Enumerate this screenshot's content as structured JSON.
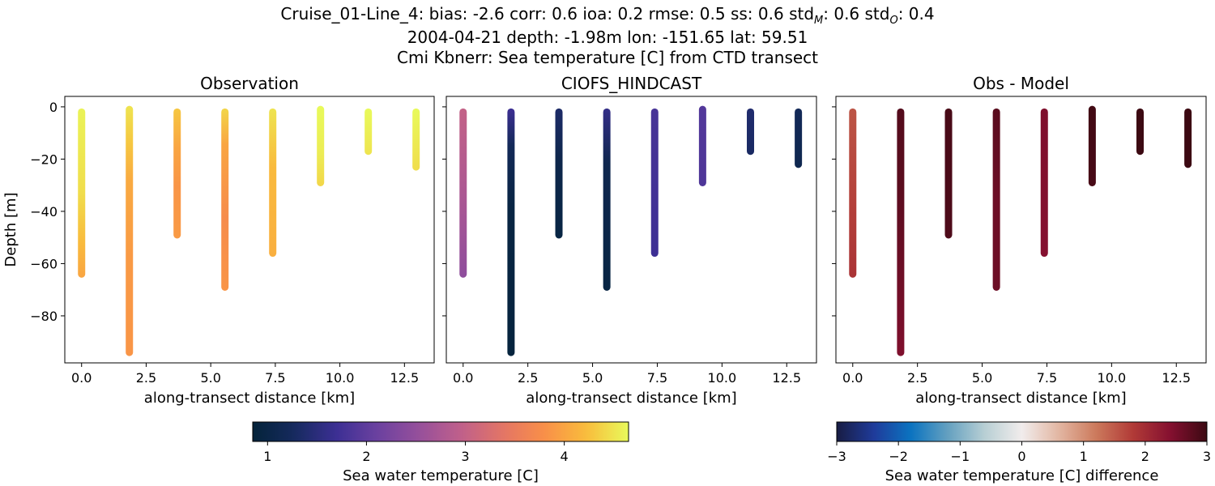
{
  "figure": {
    "title_line1": "Cruise_01-Line_4: bias: -2.6  corr: 0.6  ioa: 0.2  rmse: 0.5  ss: 0.6  std",
    "title_line1_std_m_sub": "M",
    "title_line1_mid": ": 0.6  std",
    "title_line1_std_o_sub": "O",
    "title_line1_end": ": 0.4",
    "title_line2": "2004-04-21 depth: -1.98m lon: -151.65 lat: 59.51",
    "title_line3": "Cmi Kbnerr: Sea temperature [C] from CTD transect"
  },
  "chart_data": [
    {
      "type": "scatter",
      "title": "Observation",
      "xlabel": "along-transect distance [km]",
      "ylabel": "Depth [m]",
      "xlim": [
        -0.65,
        13.65
      ],
      "ylim": [
        -98,
        4
      ],
      "xticks": [
        "0.0",
        "2.5",
        "5.0",
        "7.5",
        "10.0",
        "12.5"
      ],
      "yticks": [
        "0",
        "−20",
        "−40",
        "−60",
        "−80"
      ],
      "colormap": "thermal",
      "clim": [
        0.85,
        4.65
      ],
      "casts": [
        {
          "x": 0.0,
          "top": -2,
          "bottom": -64,
          "color_stops": [
            [
              0,
              4.6
            ],
            [
              0.5,
              4.45
            ],
            [
              0.8,
              4.2
            ],
            [
              1,
              4.0
            ]
          ]
        },
        {
          "x": 1.85,
          "top": -1,
          "bottom": -94,
          "color_stops": [
            [
              0,
              4.5
            ],
            [
              0.15,
              4.3
            ],
            [
              0.3,
              4.05
            ],
            [
              0.6,
              3.9
            ],
            [
              1,
              3.85
            ]
          ]
        },
        {
          "x": 3.7,
          "top": -2,
          "bottom": -49,
          "color_stops": [
            [
              0,
              4.3
            ],
            [
              0.3,
              4.0
            ],
            [
              0.6,
              3.85
            ],
            [
              1,
              3.9
            ]
          ]
        },
        {
          "x": 5.55,
          "top": -2,
          "bottom": -69,
          "color_stops": [
            [
              0,
              4.4
            ],
            [
              0.2,
              4.0
            ],
            [
              0.6,
              3.75
            ],
            [
              1,
              3.85
            ]
          ]
        },
        {
          "x": 7.4,
          "top": -2,
          "bottom": -56,
          "color_stops": [
            [
              0,
              4.5
            ],
            [
              0.4,
              4.2
            ],
            [
              1,
              4.1
            ]
          ]
        },
        {
          "x": 9.25,
          "top": -1,
          "bottom": -29,
          "color_stops": [
            [
              0,
              4.65
            ],
            [
              0.6,
              4.55
            ],
            [
              1,
              4.4
            ]
          ]
        },
        {
          "x": 11.1,
          "top": -2,
          "bottom": -17,
          "color_stops": [
            [
              0,
              4.65
            ],
            [
              1,
              4.5
            ]
          ]
        },
        {
          "x": 12.95,
          "top": -2,
          "bottom": -23,
          "color_stops": [
            [
              0,
              4.65
            ],
            [
              1,
              4.45
            ]
          ]
        }
      ]
    },
    {
      "type": "scatter",
      "title": "CIOFS_HINDCAST",
      "xlabel": "along-transect distance [km]",
      "ylabel": "",
      "xlim": [
        -0.65,
        13.65
      ],
      "ylim": [
        -98,
        4
      ],
      "xticks": [
        "0.0",
        "2.5",
        "5.0",
        "7.5",
        "10.0",
        "12.5"
      ],
      "colormap": "thermal",
      "clim": [
        0.85,
        4.65
      ],
      "casts": [
        {
          "x": 0.0,
          "top": -2,
          "bottom": -64,
          "color_stops": [
            [
              0,
              3.0
            ],
            [
              0.6,
              2.7
            ],
            [
              1,
              2.45
            ]
          ]
        },
        {
          "x": 1.85,
          "top": -2,
          "bottom": -94,
          "color_stops": [
            [
              0,
              1.7
            ],
            [
              0.15,
              1.2
            ],
            [
              0.4,
              0.95
            ],
            [
              1,
              0.9
            ]
          ]
        },
        {
          "x": 3.7,
          "top": -2,
          "bottom": -49,
          "color_stops": [
            [
              0,
              1.35
            ],
            [
              0.4,
              1.05
            ],
            [
              1,
              0.95
            ]
          ]
        },
        {
          "x": 5.55,
          "top": -2,
          "bottom": -69,
          "color_stops": [
            [
              0,
              1.6
            ],
            [
              0.3,
              1.1
            ],
            [
              1,
              0.95
            ]
          ]
        },
        {
          "x": 7.4,
          "top": -2,
          "bottom": -56,
          "color_stops": [
            [
              0,
              1.8
            ],
            [
              1,
              1.7
            ]
          ]
        },
        {
          "x": 9.25,
          "top": -1,
          "bottom": -29,
          "color_stops": [
            [
              0,
              1.9
            ],
            [
              1,
              1.85
            ]
          ]
        },
        {
          "x": 11.1,
          "top": -2,
          "bottom": -17,
          "color_stops": [
            [
              0,
              1.4
            ],
            [
              1,
              1.3
            ]
          ]
        },
        {
          "x": 12.95,
          "top": -2,
          "bottom": -22,
          "color_stops": [
            [
              0,
              1.2
            ],
            [
              1,
              1.1
            ]
          ]
        }
      ]
    },
    {
      "type": "scatter",
      "title": "Obs - Model",
      "xlabel": "along-transect distance [km]",
      "ylabel": "",
      "xlim": [
        -0.65,
        13.65
      ],
      "ylim": [
        -98,
        4
      ],
      "xticks": [
        "0.0",
        "2.5",
        "5.0",
        "7.5",
        "10.0",
        "12.5"
      ],
      "colormap": "balance",
      "clim": [
        -3,
        3
      ],
      "casts": [
        {
          "x": 0.0,
          "top": -2,
          "bottom": -64,
          "color_stops": [
            [
              0,
              1.55
            ],
            [
              0.6,
              1.75
            ],
            [
              1,
              1.9
            ]
          ]
        },
        {
          "x": 1.85,
          "top": -2,
          "bottom": -94,
          "color_stops": [
            [
              0,
              2.8
            ],
            [
              0.3,
              2.75
            ],
            [
              1,
              2.45
            ]
          ]
        },
        {
          "x": 3.7,
          "top": -2,
          "bottom": -49,
          "color_stops": [
            [
              0,
              2.9
            ],
            [
              1,
              2.85
            ]
          ]
        },
        {
          "x": 5.55,
          "top": -2,
          "bottom": -69,
          "color_stops": [
            [
              0,
              2.75
            ],
            [
              0.5,
              2.6
            ],
            [
              1,
              2.6
            ]
          ]
        },
        {
          "x": 7.4,
          "top": -2,
          "bottom": -56,
          "color_stops": [
            [
              0,
              2.45
            ],
            [
              1,
              2.4
            ]
          ]
        },
        {
          "x": 9.25,
          "top": -1,
          "bottom": -29,
          "color_stops": [
            [
              0,
              2.95
            ],
            [
              1,
              2.9
            ]
          ]
        },
        {
          "x": 11.1,
          "top": -2,
          "bottom": -17,
          "color_stops": [
            [
              0,
              3.0
            ],
            [
              1,
              3.0
            ]
          ]
        },
        {
          "x": 12.95,
          "top": -2,
          "bottom": -22,
          "color_stops": [
            [
              0,
              3.0
            ],
            [
              1,
              3.0
            ]
          ]
        }
      ]
    }
  ],
  "colorbars": [
    {
      "label": "Sea water temperature [C]",
      "colormap": "thermal",
      "clim": [
        0.85,
        4.65
      ],
      "ticks": [
        1,
        2,
        3,
        4
      ],
      "tick_labels": [
        "1",
        "2",
        "3",
        "4"
      ]
    },
    {
      "label": "Sea water temperature [C] difference",
      "colormap": "balance",
      "clim": [
        -3,
        3
      ],
      "ticks": [
        -3,
        -2,
        -1,
        0,
        1,
        2,
        3
      ],
      "tick_labels": [
        "−3",
        "−2",
        "−1",
        "0",
        "1",
        "2",
        "3"
      ]
    }
  ],
  "colormaps": {
    "thermal": [
      "#04233a",
      "#162a5e",
      "#3c2f94",
      "#6c41a0",
      "#97509b",
      "#c0608a",
      "#e37565",
      "#f99048",
      "#f9bd3c",
      "#e8fa5b"
    ],
    "balance": [
      "#181c43",
      "#1f3b9a",
      "#0b73c0",
      "#64a0c0",
      "#b8cfd4",
      "#f1ecec",
      "#e2b6a2",
      "#cc7a5c",
      "#b13a37",
      "#851030",
      "#3c0912"
    ]
  }
}
